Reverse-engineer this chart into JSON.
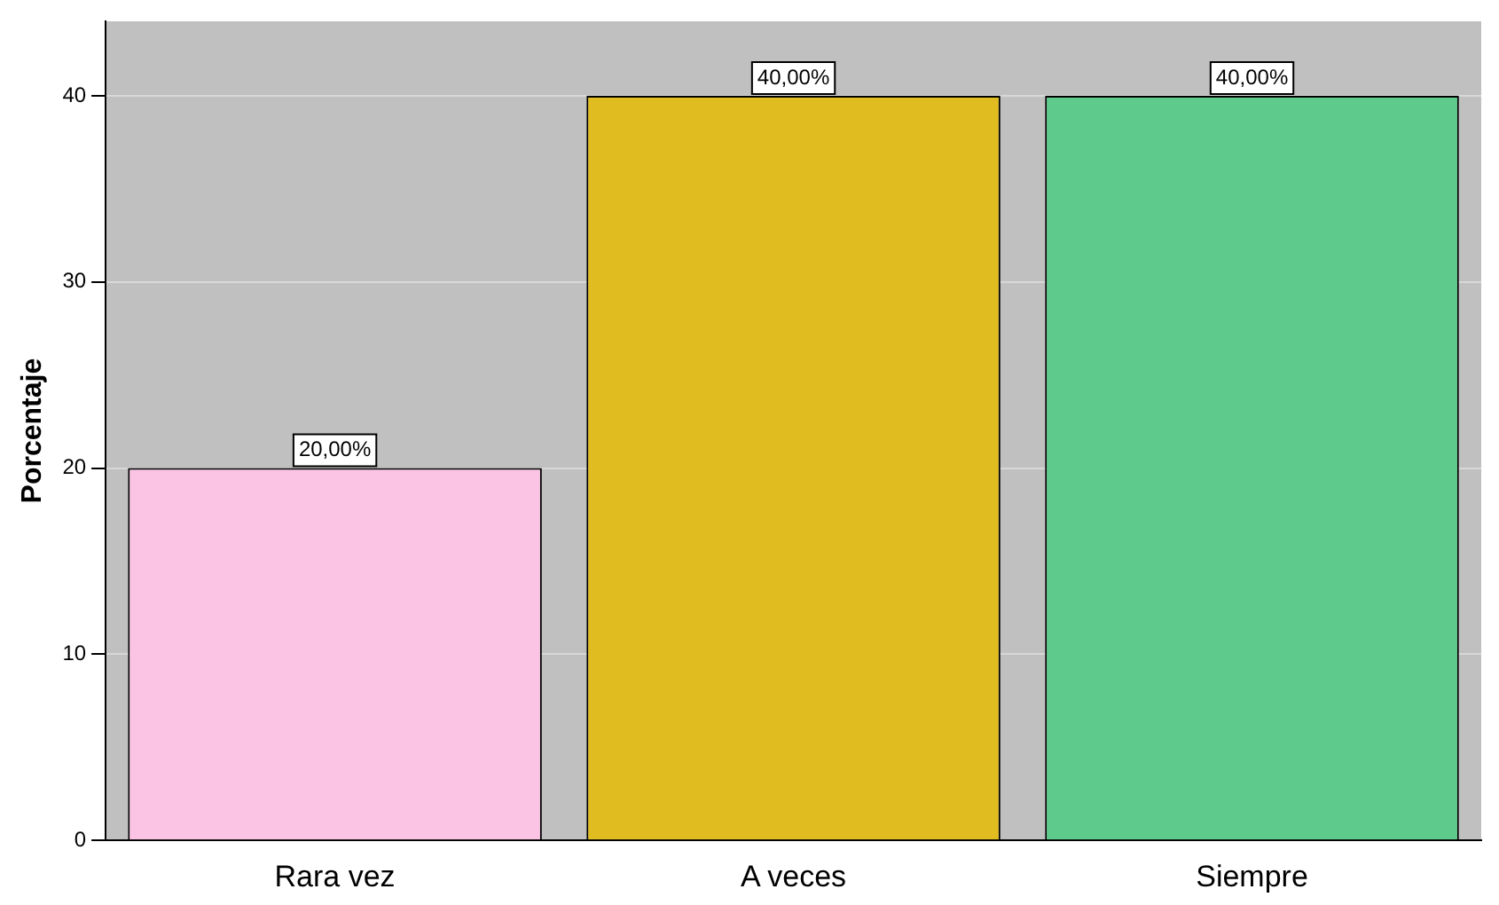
{
  "chart_data": {
    "type": "bar",
    "ylabel": "Porcentaje",
    "categories": [
      "Rara vez",
      "A veces",
      "Siempre"
    ],
    "values": [
      20,
      40,
      40
    ],
    "colors": [
      "#fcc4e4",
      "#e0bc20",
      "#5ecb8c"
    ],
    "value_labels": [
      "20,00%",
      "40,00%",
      "40,00%"
    ],
    "ylim": [
      0,
      44
    ],
    "yticks": [
      0,
      10,
      20,
      30,
      40
    ],
    "grid": "y",
    "legend": false
  }
}
